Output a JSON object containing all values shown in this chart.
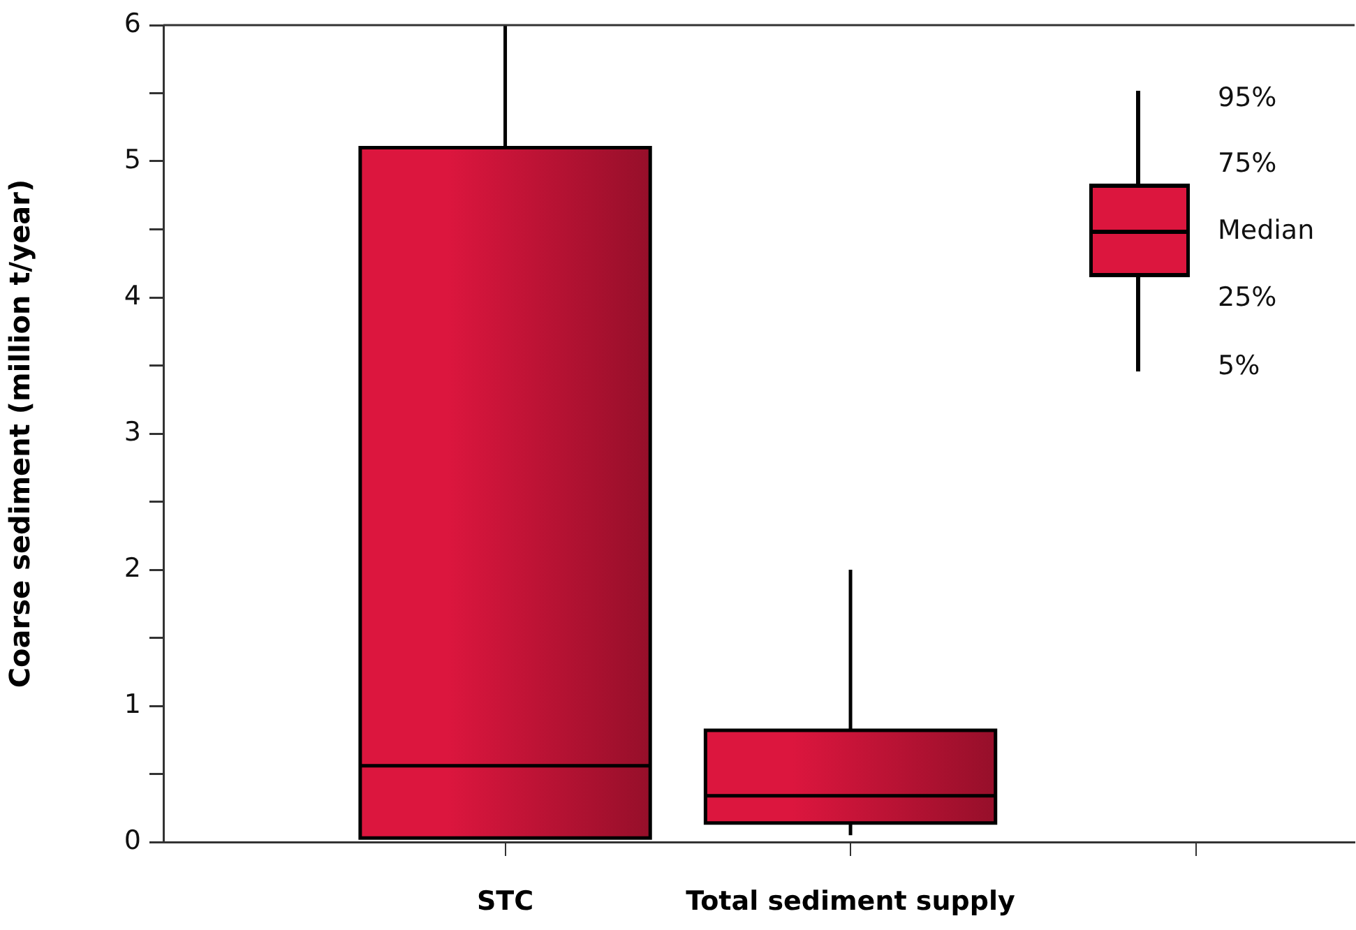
{
  "chart_data": {
    "type": "box",
    "ylabel": "Coarse sediment (million t/year)",
    "categories": [
      "STC",
      "Total sediment supply",
      null
    ],
    "boxes": [
      {
        "low": 0.03,
        "q1": 0.03,
        "median": 0.56,
        "q3": 5.1,
        "high": 6
      },
      {
        "low": 0.05,
        "q1": 0.14,
        "median": 0.34,
        "q3": 0.82,
        "high": 2.0
      },
      null
    ],
    "color": "#dc163e",
    "ylim": [
      0,
      6
    ],
    "yticks": [
      0,
      {
        "value": 0.5,
        "label": null
      },
      1,
      {
        "value": 1.5,
        "label": null
      },
      2,
      {
        "value": 2.5,
        "label": null
      },
      3,
      {
        "value": 3.5,
        "label": null
      },
      4,
      {
        "value": 4.5,
        "label": null
      },
      5,
      {
        "value": 5.5,
        "label": null
      },
      6
    ],
    "grid": false,
    "legend": false,
    "annotations": [
      "95%",
      "75%",
      "Median",
      "25%",
      "5%"
    ]
  }
}
